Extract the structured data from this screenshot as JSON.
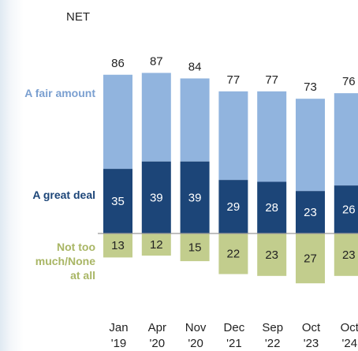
{
  "colors": {
    "fair_amount": "#91b4de",
    "great_deal": "#1c4578",
    "not_too_much": "#c2cd8d",
    "baseline": "#999999",
    "net_text": "#222222",
    "row_label_fair": "#7a9fd0",
    "row_label_great": "#1c4578",
    "row_label_not": "#a9b665"
  },
  "chart_data": {
    "type": "bar",
    "stacked": true,
    "diverging": true,
    "categories": [
      {
        "month": "Jan",
        "year": "'19"
      },
      {
        "month": "Apr",
        "year": "'20"
      },
      {
        "month": "Nov",
        "year": "'20"
      },
      {
        "month": "Dec",
        "year": "'21"
      },
      {
        "month": "Sep",
        "year": "'22"
      },
      {
        "month": "Oct",
        "year": "'23"
      },
      {
        "month": "Oct",
        "year": "'24"
      }
    ],
    "series": [
      {
        "name": "A great deal",
        "values": [
          35,
          39,
          39,
          29,
          28,
          23,
          26
        ],
        "labeled": true
      },
      {
        "name": "A fair amount",
        "values": [
          51,
          48,
          45,
          48,
          49,
          50,
          50
        ],
        "labeled": false
      },
      {
        "name": "Not too much/None at all",
        "values": [
          13,
          12,
          15,
          22,
          23,
          27,
          23
        ],
        "labeled": true,
        "direction": "below"
      }
    ],
    "net": {
      "label": "NET",
      "values": [
        86,
        87,
        84,
        77,
        77,
        73,
        76
      ]
    },
    "row_labels": {
      "fair": [
        "A fair amount"
      ],
      "great": [
        "A great deal"
      ],
      "not": [
        "Not too",
        "much/None",
        "at all"
      ]
    }
  }
}
